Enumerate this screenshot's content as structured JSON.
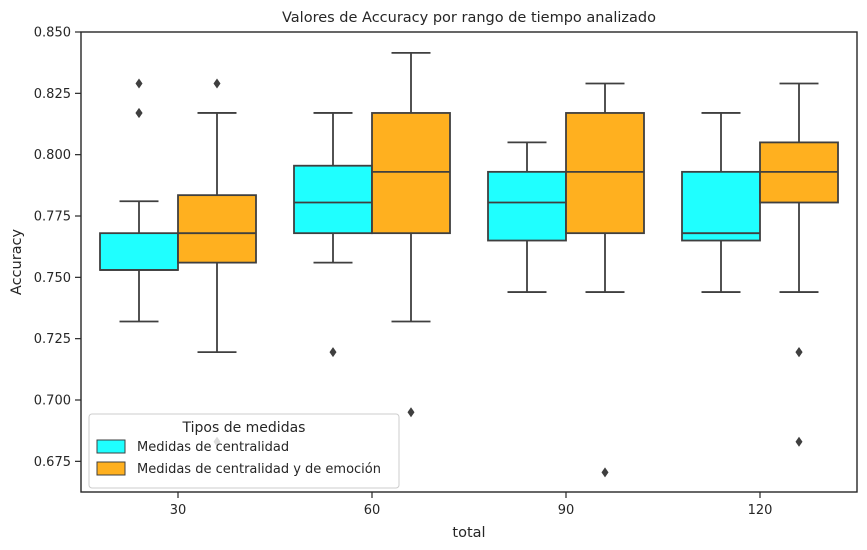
{
  "chart_data": {
    "type": "box",
    "title": "Valores de Accuracy por rango de tiempo analizado",
    "xlabel": "total",
    "ylabel": "Accuracy",
    "categories": [
      "30",
      "60",
      "90",
      "120"
    ],
    "ylim": [
      0.6625,
      0.85
    ],
    "yticks": [
      "0.675",
      "0.700",
      "0.725",
      "0.750",
      "0.775",
      "0.800",
      "0.825",
      "0.850"
    ],
    "legend": {
      "title": "Tipos de medidas",
      "placement": "lower-left"
    },
    "series": [
      {
        "name": "Medidas de centralidad",
        "color": "#00ffff",
        "boxes": [
          {
            "whislo": 0.732,
            "q1": 0.753,
            "med": 0.753,
            "q3": 0.768,
            "whishi": 0.781,
            "fliers": [
              0.817,
              0.817,
              0.829
            ]
          },
          {
            "whislo": 0.756,
            "q1": 0.768,
            "med": 0.7805,
            "q3": 0.7955,
            "whishi": 0.817,
            "fliers": [
              0.7195
            ]
          },
          {
            "whislo": 0.744,
            "q1": 0.765,
            "med": 0.7805,
            "q3": 0.793,
            "whishi": 0.805,
            "fliers": []
          },
          {
            "whislo": 0.744,
            "q1": 0.765,
            "med": 0.768,
            "q3": 0.793,
            "whishi": 0.817,
            "fliers": []
          }
        ]
      },
      {
        "name": "Medidas de centralidad y de emoción",
        "color": "#ffa500",
        "boxes": [
          {
            "whislo": 0.7195,
            "q1": 0.756,
            "med": 0.768,
            "q3": 0.7835,
            "whishi": 0.817,
            "fliers": [
              0.829,
              0.683
            ]
          },
          {
            "whislo": 0.732,
            "q1": 0.768,
            "med": 0.793,
            "q3": 0.817,
            "whishi": 0.8415,
            "fliers": [
              0.695
            ]
          },
          {
            "whislo": 0.744,
            "q1": 0.768,
            "med": 0.793,
            "q3": 0.817,
            "whishi": 0.829,
            "fliers": [
              0.6705
            ]
          },
          {
            "whislo": 0.744,
            "q1": 0.7805,
            "med": 0.793,
            "q3": 0.805,
            "whishi": 0.829,
            "fliers": [
              0.7195,
              0.7195,
              0.683
            ]
          }
        ]
      }
    ]
  }
}
